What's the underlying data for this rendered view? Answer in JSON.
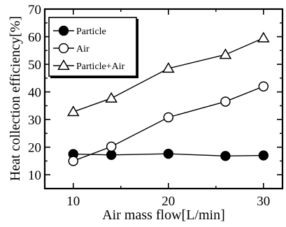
{
  "chart_data": {
    "type": "line",
    "xlabel": "Air mass flow[L/min]",
    "ylabel": "Heat collection efficiency[%]",
    "xlim": [
      7,
      32
    ],
    "ylim": [
      5,
      70
    ],
    "xticks": [
      10,
      20,
      30
    ],
    "yticks": [
      10,
      20,
      30,
      40,
      50,
      60,
      70
    ],
    "grid": false,
    "legend_position": "top-left",
    "series": [
      {
        "name": "Particle",
        "marker": "filled-circle",
        "color": "#000000",
        "x": [
          10,
          14,
          20,
          26,
          30
        ],
        "y": [
          17.5,
          17.2,
          17.6,
          16.8,
          17.0
        ]
      },
      {
        "name": "Air",
        "marker": "open-circle",
        "color": "#000000",
        "x": [
          10,
          14,
          20,
          26,
          30
        ],
        "y": [
          15.0,
          20.2,
          30.8,
          36.5,
          42.0
        ]
      },
      {
        "name": "Particle+Air",
        "marker": "open-triangle",
        "color": "#000000",
        "x": [
          10,
          14,
          20,
          26,
          30
        ],
        "y": [
          32.8,
          37.7,
          48.5,
          53.5,
          59.5
        ]
      }
    ]
  }
}
